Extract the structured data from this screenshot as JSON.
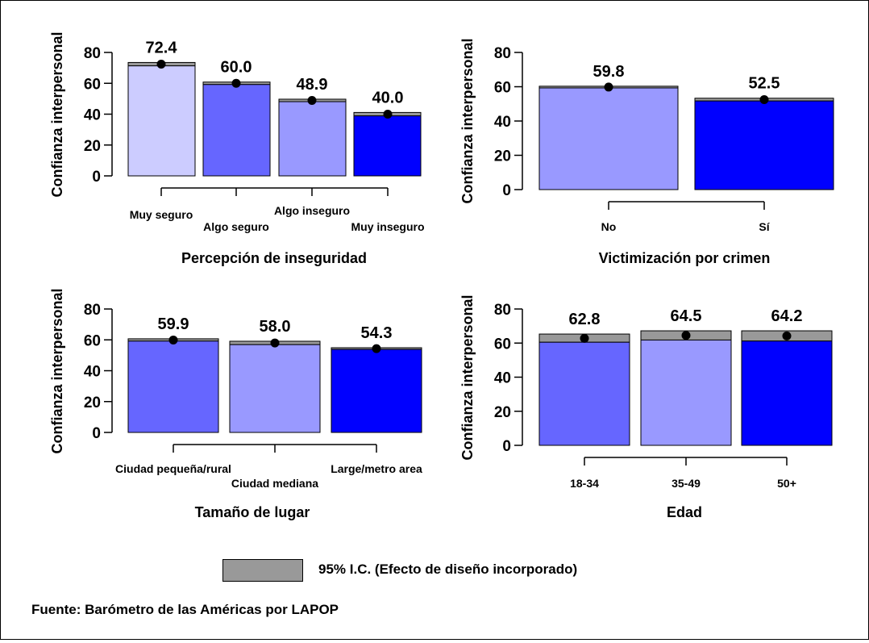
{
  "chart_data": [
    {
      "type": "bar",
      "xlabel": "Percepción de inseguridad",
      "ylabel": "Confianza interpersonal",
      "ylim": [
        0,
        80
      ],
      "yticks": [
        0,
        20,
        40,
        60,
        80
      ],
      "categories": [
        "Muy seguro",
        "Algo seguro",
        "Algo inseguro",
        "Muy inseguro"
      ],
      "values": [
        72.4,
        60.0,
        48.9,
        40.0
      ],
      "value_labels": [
        "72.4",
        "60.0",
        "48.9",
        "40.0"
      ],
      "ci_low": [
        71.3,
        59.2,
        48.1,
        38.9
      ],
      "ci_high": [
        73.5,
        60.8,
        49.7,
        41.1
      ],
      "colors": [
        "#ccccff",
        "#6666ff",
        "#9999ff",
        "#0000ff"
      ]
    },
    {
      "type": "bar",
      "xlabel": "Victimización por crimen",
      "ylabel": "Confianza interpersonal",
      "ylim": [
        0,
        80
      ],
      "yticks": [
        0,
        20,
        40,
        60,
        80
      ],
      "categories": [
        "No",
        "Sí"
      ],
      "values": [
        59.8,
        52.5
      ],
      "value_labels": [
        "59.8",
        "52.5"
      ],
      "ci_low": [
        59.3,
        51.7
      ],
      "ci_high": [
        60.3,
        53.3
      ],
      "colors": [
        "#9999ff",
        "#0000ff"
      ]
    },
    {
      "type": "bar",
      "xlabel": "Tamaño de lugar",
      "ylabel": "Confianza interpersonal",
      "ylim": [
        0,
        80
      ],
      "yticks": [
        0,
        20,
        40,
        60,
        80
      ],
      "categories": [
        "Ciudad pequeña/rural",
        "Ciudad mediana",
        "Large/metro area"
      ],
      "values": [
        59.9,
        58.0,
        54.3
      ],
      "value_labels": [
        "59.9",
        "58.0",
        "54.3"
      ],
      "ci_low": [
        59.2,
        56.9,
        53.8
      ],
      "ci_high": [
        60.7,
        59.1,
        54.9
      ],
      "colors": [
        "#6666ff",
        "#9999ff",
        "#0000ff"
      ]
    },
    {
      "type": "bar",
      "xlabel": "Edad",
      "ylabel": "Confianza interpersonal",
      "ylim": [
        0,
        80
      ],
      "yticks": [
        0,
        20,
        40,
        60,
        80
      ],
      "categories": [
        "18-34",
        "35-49",
        "50+"
      ],
      "values": [
        62.8,
        64.5,
        64.2
      ],
      "value_labels": [
        "62.8",
        "64.5",
        "64.2"
      ],
      "ci_low": [
        60.5,
        61.8,
        61.2
      ],
      "ci_high": [
        65.3,
        67.2,
        67.2
      ],
      "colors": [
        "#6666ff",
        "#9999ff",
        "#0000ff"
      ]
    }
  ],
  "legend": {
    "label": "95% I.C. (Efecto de diseño incorporado)",
    "color": "#999999"
  },
  "source": "Fuente: Barómetro de las Américas por LAPOP"
}
